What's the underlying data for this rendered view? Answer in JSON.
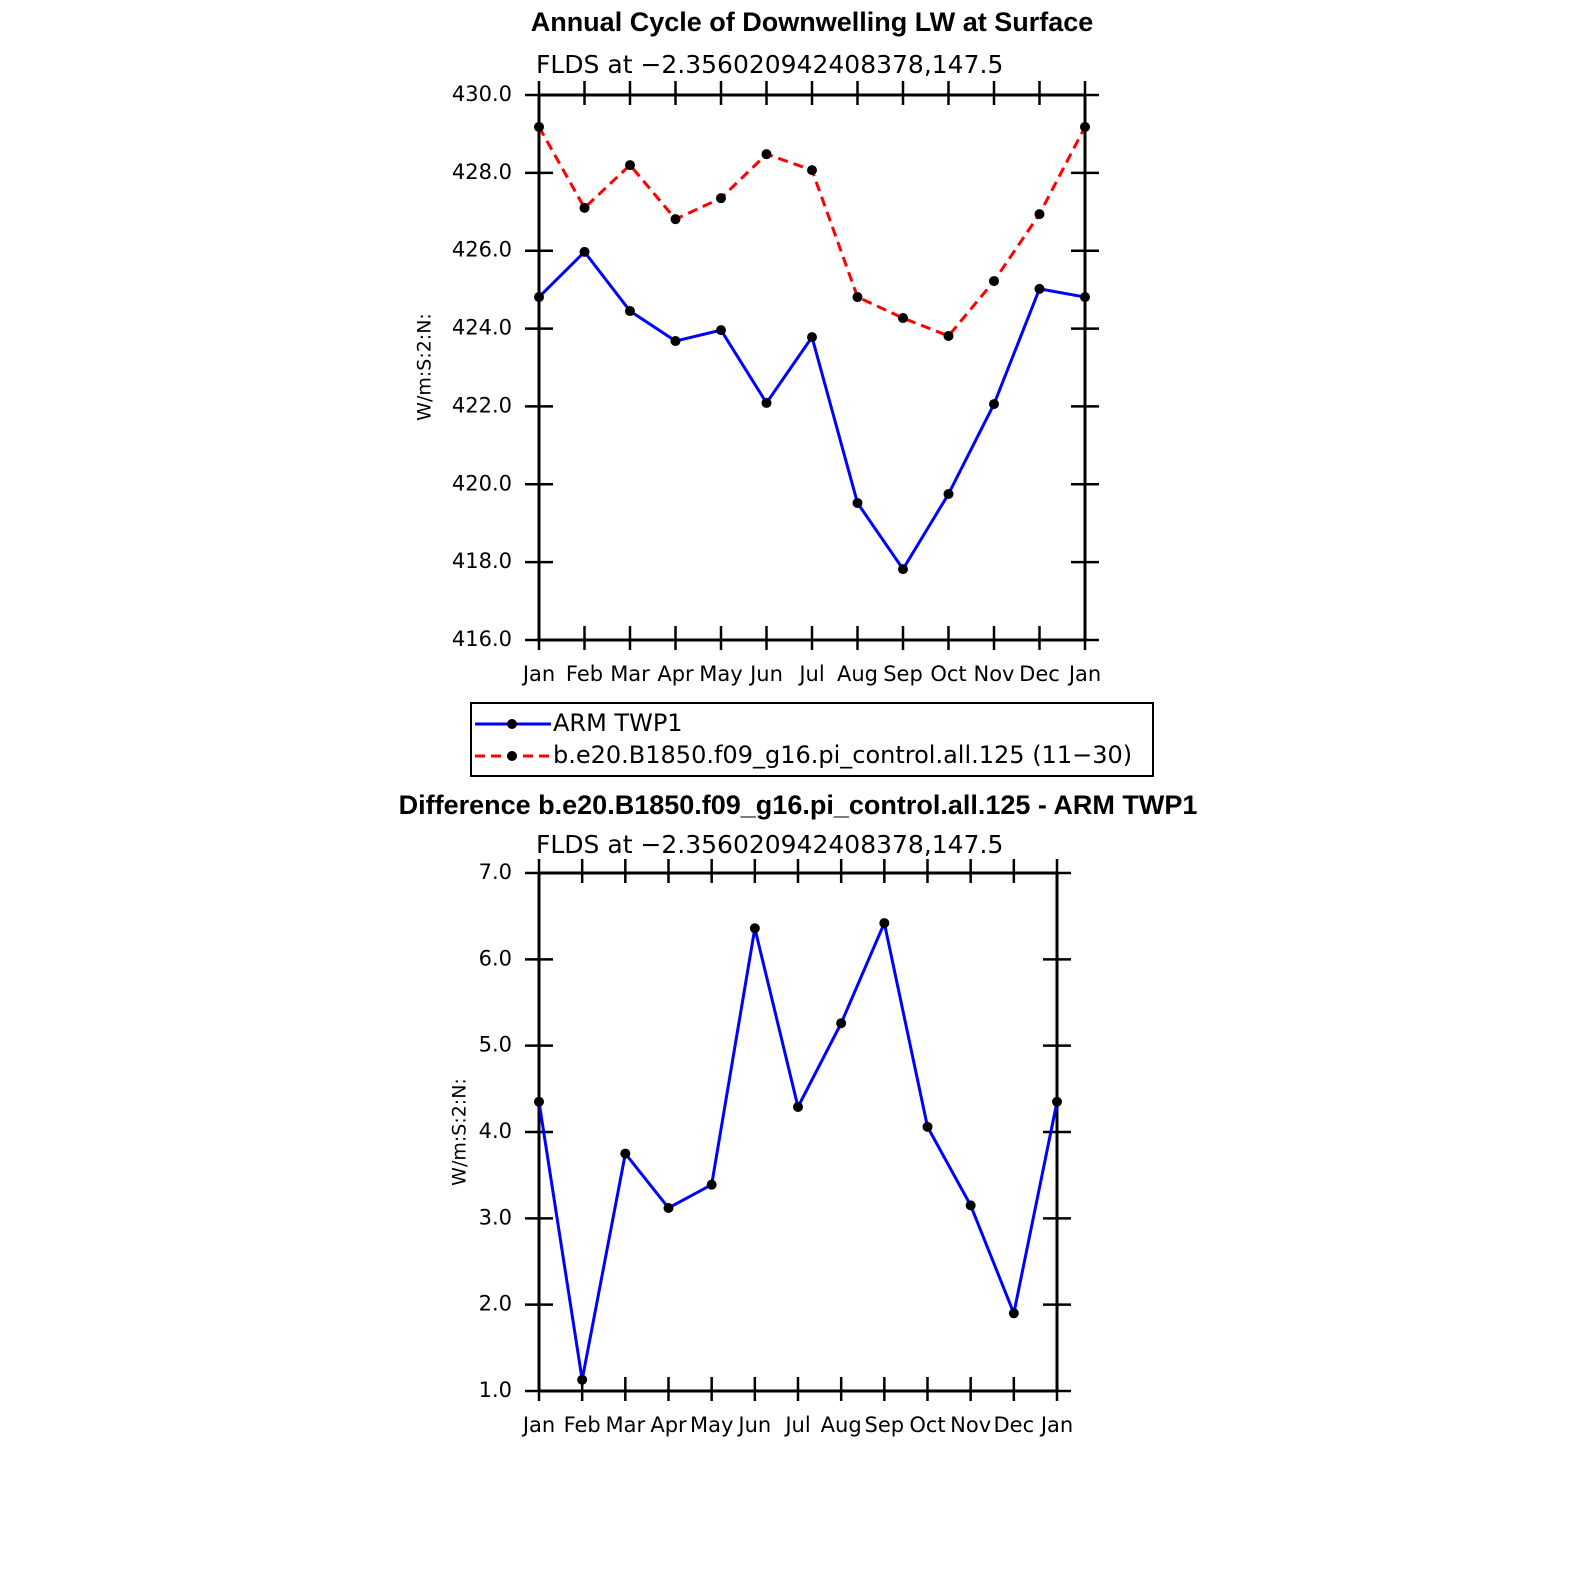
{
  "chart_data": [
    {
      "type": "line",
      "title": "Annual Cycle of Downwelling LW at Surface",
      "subtitle": "FLDS at −2.356020942408378,147.5",
      "y_label": "W/m:S:2:N:",
      "categories": [
        "Jan",
        "Feb",
        "Mar",
        "Apr",
        "May",
        "Jun",
        "Jul",
        "Aug",
        "Sep",
        "Oct",
        "Nov",
        "Dec",
        "Jan"
      ],
      "series": [
        {
          "name": "ARM TWP1",
          "color": "#0000ff",
          "line_style": "solid",
          "values": [
            424.81,
            425.97,
            424.45,
            423.68,
            423.96,
            422.09,
            423.78,
            419.52,
            417.82,
            419.75,
            422.06,
            425.02,
            424.81
          ]
        },
        {
          "name": "b.e20.B1850.f09_g16.pi_control.all.125 (11−30)",
          "color": "#ff0000",
          "line_style": "dashed",
          "values": [
            429.18,
            427.1,
            428.2,
            426.81,
            427.35,
            428.48,
            428.07,
            424.81,
            424.27,
            423.81,
            425.22,
            426.94,
            429.18
          ]
        }
      ],
      "marker_color": "#000000",
      "ylim": [
        416,
        430
      ],
      "yticks": [
        {
          "value": 416,
          "label": "416.0"
        },
        {
          "value": 418,
          "label": "418.0"
        },
        {
          "value": 420,
          "label": "420.0"
        },
        {
          "value": 422,
          "label": "422.0"
        },
        {
          "value": 424,
          "label": "424.0"
        },
        {
          "value": 426,
          "label": "426.0"
        },
        {
          "value": 428,
          "label": "428.0"
        },
        {
          "value": 430,
          "label": "430.0"
        }
      ],
      "legend": "bottom"
    },
    {
      "type": "line",
      "title": "Difference b.e20.B1850.f09_g16.pi_control.all.125 - ARM TWP1",
      "subtitle": "FLDS at −2.356020942408378,147.5",
      "y_label": "W/m:S:2:N:",
      "categories": [
        "Jan",
        "Feb",
        "Mar",
        "Apr",
        "May",
        "Jun",
        "Jul",
        "Aug",
        "Sep",
        "Oct",
        "Nov",
        "Dec",
        "Jan"
      ],
      "series": [
        {
          "color": "#0000ff",
          "line_style": "solid",
          "values": [
            4.35,
            1.13,
            3.75,
            3.12,
            3.39,
            6.36,
            4.29,
            5.26,
            6.42,
            4.06,
            3.15,
            1.9,
            4.35
          ]
        }
      ],
      "marker_color": "#000000",
      "ylim": [
        1,
        7
      ],
      "yticks": [
        {
          "value": 1,
          "label": "1.0"
        },
        {
          "value": 2,
          "label": "2.0"
        },
        {
          "value": 3,
          "label": "3.0"
        },
        {
          "value": 4,
          "label": "4.0"
        },
        {
          "value": 5,
          "label": "5.0"
        },
        {
          "value": 6,
          "label": "6.0"
        },
        {
          "value": 7,
          "label": "7.0"
        }
      ]
    }
  ]
}
